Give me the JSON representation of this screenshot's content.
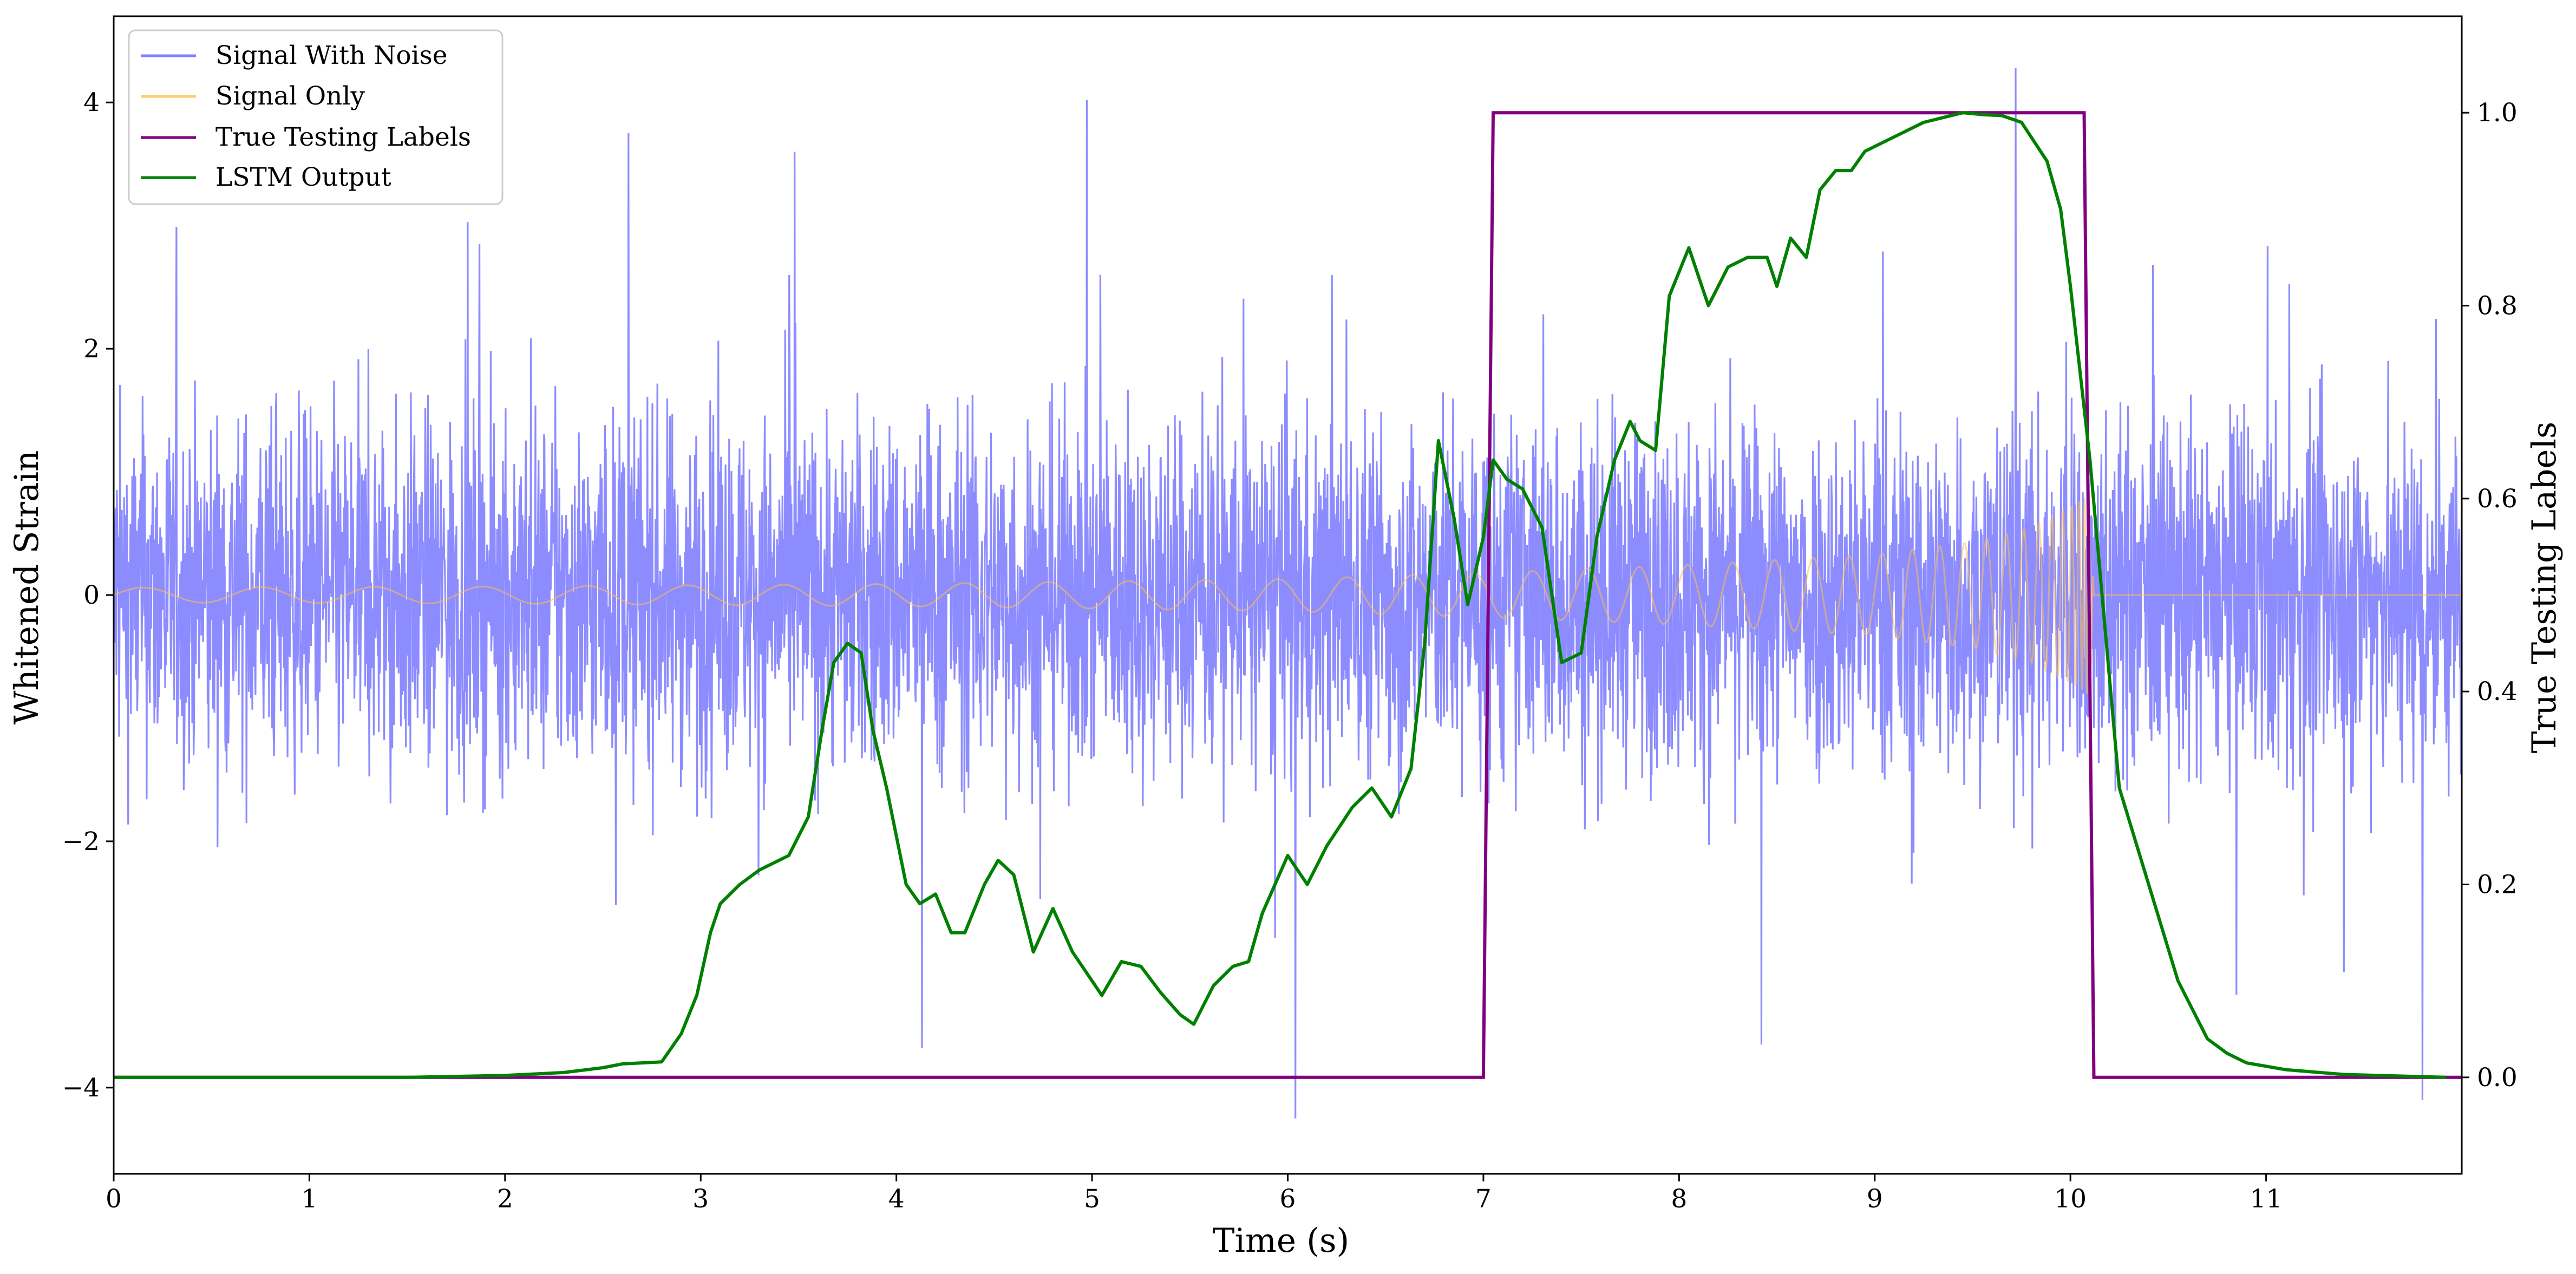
{
  "chart_data": {
    "type": "line",
    "xlabel": "Time (s)",
    "ylabel": "Whitened Strain",
    "y2label": "True Testing Labels",
    "xlim": [
      0,
      12
    ],
    "ylim": [
      -4.7,
      4.7
    ],
    "y2lim": [
      -0.1,
      1.1
    ],
    "x_ticks": [
      "0",
      "1",
      "2",
      "3",
      "4",
      "5",
      "6",
      "7",
      "8",
      "9",
      "10",
      "11"
    ],
    "y_ticks": [
      "−4",
      "−2",
      "0",
      "2",
      "4"
    ],
    "y_tick_values": [
      -4,
      -2,
      0,
      2,
      4
    ],
    "y2_ticks": [
      "0.0",
      "0.2",
      "0.4",
      "0.6",
      "0.8",
      "1.0"
    ],
    "y2_tick_values": [
      0.0,
      0.2,
      0.4,
      0.6,
      0.8,
      1.0
    ],
    "grid": false,
    "legend_position": "top-left",
    "series": [
      {
        "name": "Signal With Noise",
        "color": "#7f7fff",
        "axis": "left",
        "kind": "noise",
        "x_range": [
          0,
          12
        ],
        "typical_amplitude": 1.0,
        "peak_values": [
          {
            "x": 6.04,
            "y": -4.25
          },
          {
            "x": 9.72,
            "y": 4.28
          },
          {
            "x": 2.63,
            "y": 3.75
          },
          {
            "x": 3.48,
            "y": 3.6
          },
          {
            "x": 4.13,
            "y": -3.68
          },
          {
            "x": 11.8,
            "y": -4.1
          },
          {
            "x": 8.42,
            "y": -3.65
          }
        ]
      },
      {
        "name": "Signal Only",
        "color": "#ffc04d",
        "axis": "left",
        "kind": "chirp",
        "envelope": [
          [
            0,
            0.06
          ],
          [
            2,
            0.07
          ],
          [
            4,
            0.09
          ],
          [
            6,
            0.13
          ],
          [
            7,
            0.18
          ],
          [
            8,
            0.24
          ],
          [
            9,
            0.33
          ],
          [
            9.5,
            0.43
          ],
          [
            9.8,
            0.55
          ],
          [
            10.0,
            0.72
          ],
          [
            10.1,
            0.82
          ],
          [
            10.12,
            0
          ]
        ],
        "x_end": 12
      },
      {
        "name": "True Testing Labels",
        "color": "#800080",
        "axis": "right",
        "x": [
          0,
          7.0,
          7.05,
          10.07,
          10.12,
          12
        ],
        "values": [
          0,
          0,
          1,
          1,
          0,
          0
        ]
      },
      {
        "name": "LSTM Output",
        "color": "#008000",
        "axis": "right",
        "x": [
          0,
          1.0,
          1.5,
          2.0,
          2.3,
          2.5,
          2.6,
          2.7,
          2.8,
          2.9,
          2.98,
          3.05,
          3.1,
          3.2,
          3.3,
          3.45,
          3.55,
          3.62,
          3.68,
          3.75,
          3.82,
          3.88,
          3.95,
          4.05,
          4.12,
          4.2,
          4.28,
          4.35,
          4.45,
          4.52,
          4.6,
          4.7,
          4.8,
          4.9,
          5.05,
          5.15,
          5.25,
          5.35,
          5.45,
          5.52,
          5.62,
          5.72,
          5.8,
          5.87,
          6.0,
          6.1,
          6.2,
          6.33,
          6.43,
          6.53,
          6.63,
          6.7,
          6.77,
          6.85,
          6.92,
          7.0,
          7.05,
          7.12,
          7.2,
          7.3,
          7.4,
          7.5,
          7.58,
          7.67,
          7.75,
          7.8,
          7.88,
          7.95,
          8.05,
          8.15,
          8.25,
          8.35,
          8.45,
          8.5,
          8.57,
          8.65,
          8.72,
          8.8,
          8.88,
          8.95,
          9.05,
          9.15,
          9.25,
          9.35,
          9.45,
          9.55,
          9.65,
          9.75,
          9.88,
          9.95,
          10.0,
          10.1,
          10.25,
          10.4,
          10.55,
          10.7,
          10.8,
          10.9,
          11.1,
          11.4,
          11.92
        ],
        "values": [
          0.0,
          0.0,
          0.0,
          0.002,
          0.005,
          0.01,
          0.014,
          0.015,
          0.016,
          0.045,
          0.085,
          0.15,
          0.18,
          0.2,
          0.215,
          0.23,
          0.27,
          0.36,
          0.43,
          0.45,
          0.44,
          0.36,
          0.3,
          0.2,
          0.18,
          0.19,
          0.15,
          0.15,
          0.2,
          0.225,
          0.21,
          0.13,
          0.175,
          0.13,
          0.085,
          0.12,
          0.115,
          0.088,
          0.065,
          0.055,
          0.095,
          0.115,
          0.12,
          0.17,
          0.23,
          0.2,
          0.24,
          0.28,
          0.3,
          0.27,
          0.32,
          0.45,
          0.66,
          0.58,
          0.49,
          0.56,
          0.64,
          0.62,
          0.61,
          0.57,
          0.43,
          0.44,
          0.56,
          0.64,
          0.68,
          0.66,
          0.65,
          0.81,
          0.86,
          0.8,
          0.84,
          0.85,
          0.85,
          0.82,
          0.87,
          0.85,
          0.92,
          0.94,
          0.94,
          0.96,
          0.97,
          0.98,
          0.99,
          0.995,
          1.0,
          0.998,
          0.997,
          0.99,
          0.95,
          0.9,
          0.82,
          0.64,
          0.3,
          0.2,
          0.1,
          0.04,
          0.025,
          0.015,
          0.008,
          0.003,
          0.0
        ]
      }
    ]
  }
}
